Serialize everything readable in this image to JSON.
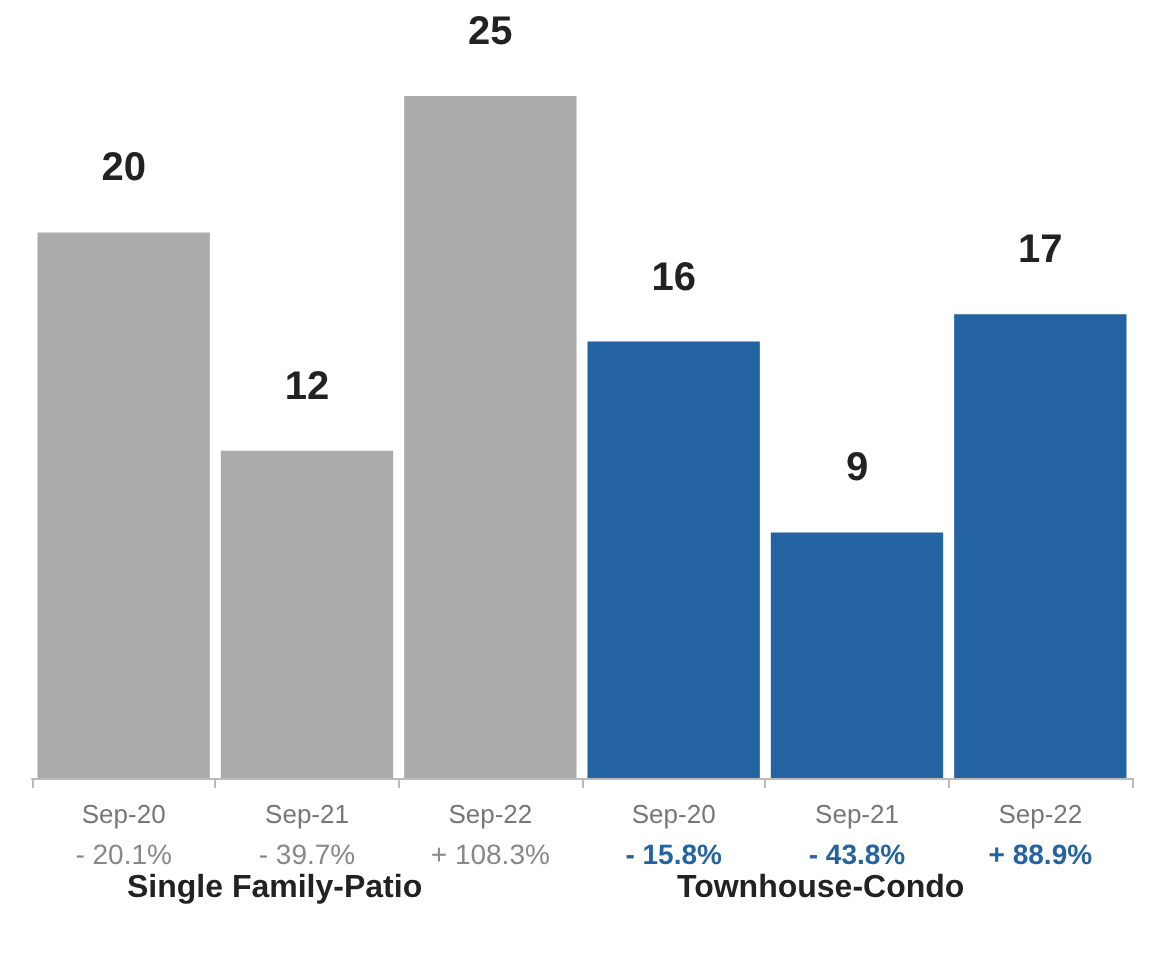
{
  "chart_data": {
    "type": "bar",
    "categories": [
      "Sep-20\n- 20.1%",
      "Sep-21\n- 39.7%",
      "Sep-22\n+ 108.3%",
      "Sep-20\n- 15.8%",
      "Sep-21\n- 43.8%",
      "Sep-22\n+ 88.9%"
    ],
    "values": [
      20,
      12,
      25,
      16,
      9,
      17
    ],
    "colors": [
      "#ababab",
      "#ababab",
      "#ababab",
      "#2463a1",
      "#2463a1",
      "#2463a1"
    ],
    "data_labels": true,
    "annotations": [
      "Single Family-Patio",
      "Townhouse-Condo"
    ]
  }
}
